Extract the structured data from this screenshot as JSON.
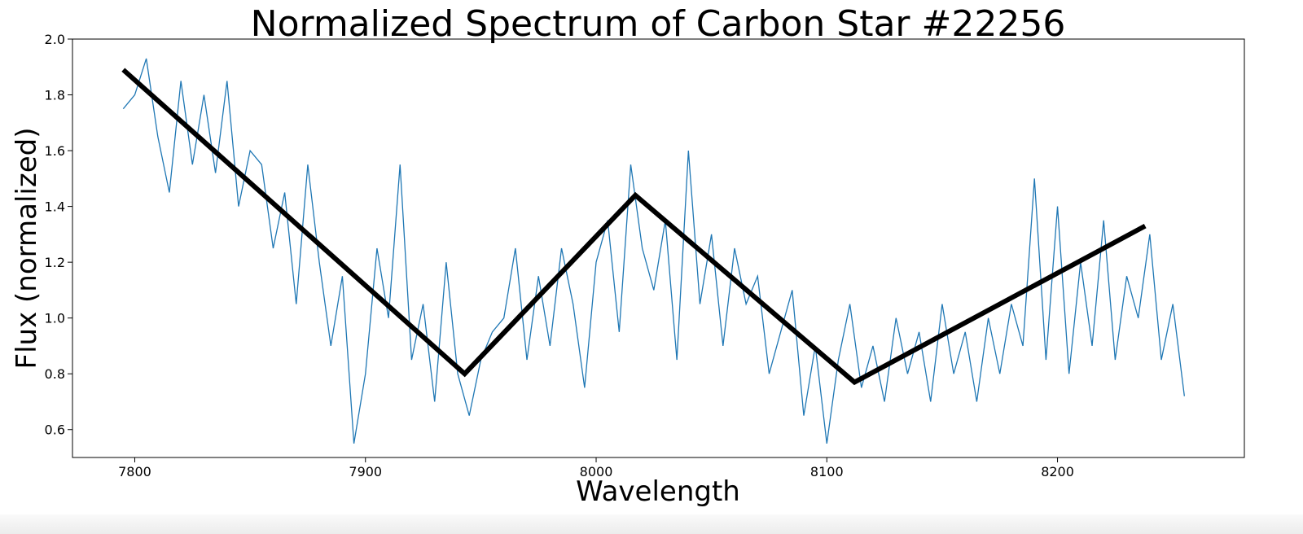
{
  "chart_data": {
    "type": "line",
    "title": "Normalized Spectrum of Carbon Star #22256",
    "x_label": "Wavelength",
    "y_label": "Flux (normalized)",
    "xlim": [
      7773,
      8281
    ],
    "ylim": [
      0.5,
      2.0
    ],
    "xticks": [
      7800,
      7900,
      8000,
      8100,
      8200
    ],
    "yticks": [
      0.6,
      0.8,
      {
        "value": 1,
        "label": "1.0"
      },
      1.2,
      1.4,
      1.6,
      1.8,
      {
        "value": 2,
        "label": "2.0"
      }
    ],
    "grid": false,
    "series": [
      {
        "color": "#1f77b4",
        "width": 1.3,
        "x": [
          7795,
          7800,
          7805,
          7810,
          7815,
          7820,
          7825,
          7830,
          7835,
          7840,
          7845,
          7850,
          7855,
          7860,
          7865,
          7870,
          7875,
          7880,
          7885,
          7890,
          7895,
          7900,
          7905,
          7910,
          7915,
          7920,
          7925,
          7930,
          7935,
          7940,
          7945,
          7950,
          7955,
          7960,
          7965,
          7970,
          7975,
          7980,
          7985,
          7990,
          7995,
          8000,
          8005,
          8010,
          8015,
          8020,
          8025,
          8030,
          8035,
          8040,
          8045,
          8050,
          8055,
          8060,
          8065,
          8070,
          8075,
          8080,
          8085,
          8090,
          8095,
          8100,
          8105,
          8110,
          8115,
          8120,
          8125,
          8130,
          8135,
          8140,
          8145,
          8150,
          8155,
          8160,
          8165,
          8170,
          8175,
          8180,
          8185,
          8190,
          8195,
          8200,
          8205,
          8210,
          8215,
          8220,
          8225,
          8230,
          8235,
          8240,
          8245,
          8250,
          8255
        ],
        "values": [
          1.75,
          1.8,
          1.93,
          1.65,
          1.45,
          1.85,
          1.55,
          1.8,
          1.52,
          1.85,
          1.4,
          1.6,
          1.55,
          1.25,
          1.45,
          1.05,
          1.55,
          1.2,
          0.9,
          1.15,
          0.55,
          0.8,
          1.25,
          1.0,
          1.55,
          0.85,
          1.05,
          0.7,
          1.2,
          0.8,
          0.65,
          0.85,
          0.95,
          1.0,
          1.25,
          0.85,
          1.15,
          0.9,
          1.25,
          1.05,
          0.75,
          1.2,
          1.35,
          0.95,
          1.55,
          1.25,
          1.1,
          1.35,
          0.85,
          1.6,
          1.05,
          1.3,
          0.9,
          1.25,
          1.05,
          1.15,
          0.8,
          0.95,
          1.1,
          0.65,
          0.9,
          0.55,
          0.85,
          1.05,
          0.75,
          0.9,
          0.7,
          1.0,
          0.8,
          0.95,
          0.7,
          1.05,
          0.8,
          0.95,
          0.7,
          1.0,
          0.8,
          1.05,
          0.9,
          1.5,
          0.85,
          1.4,
          0.8,
          1.2,
          0.9,
          1.35,
          0.85,
          1.15,
          1.0,
          1.3,
          0.85,
          1.05,
          0.72
        ]
      },
      {
        "color": "#000000",
        "width": 6,
        "x": [
          7795,
          7943,
          8017,
          8112,
          8238
        ],
        "values": [
          1.89,
          0.8,
          1.44,
          0.77,
          1.33
        ]
      }
    ]
  }
}
